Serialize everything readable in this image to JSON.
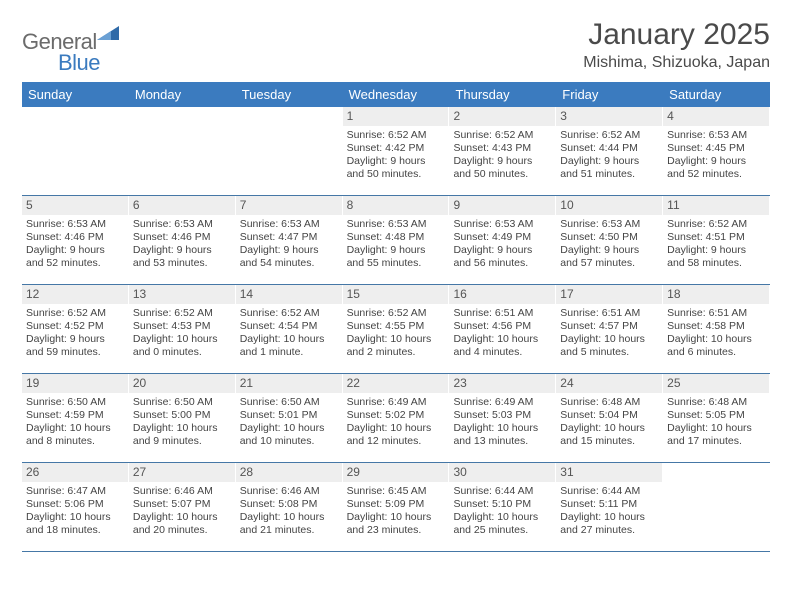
{
  "brand": {
    "general": "General",
    "blue": "Blue"
  },
  "title": "January 2025",
  "location": "Mishima, Shizuoka, Japan",
  "colors": {
    "header_bg": "#3b7bbf",
    "header_text": "#ffffff",
    "daynum_bg": "#eeeeee",
    "rule": "#4577a6",
    "text": "#444444"
  },
  "days_of_week": [
    "Sunday",
    "Monday",
    "Tuesday",
    "Wednesday",
    "Thursday",
    "Friday",
    "Saturday"
  ],
  "weeks": [
    [
      {
        "n": "",
        "sr": "",
        "ss": "",
        "dl": ""
      },
      {
        "n": "",
        "sr": "",
        "ss": "",
        "dl": ""
      },
      {
        "n": "",
        "sr": "",
        "ss": "",
        "dl": ""
      },
      {
        "n": "1",
        "sr": "Sunrise: 6:52 AM",
        "ss": "Sunset: 4:42 PM",
        "dl": "Daylight: 9 hours and 50 minutes."
      },
      {
        "n": "2",
        "sr": "Sunrise: 6:52 AM",
        "ss": "Sunset: 4:43 PM",
        "dl": "Daylight: 9 hours and 50 minutes."
      },
      {
        "n": "3",
        "sr": "Sunrise: 6:52 AM",
        "ss": "Sunset: 4:44 PM",
        "dl": "Daylight: 9 hours and 51 minutes."
      },
      {
        "n": "4",
        "sr": "Sunrise: 6:53 AM",
        "ss": "Sunset: 4:45 PM",
        "dl": "Daylight: 9 hours and 52 minutes."
      }
    ],
    [
      {
        "n": "5",
        "sr": "Sunrise: 6:53 AM",
        "ss": "Sunset: 4:46 PM",
        "dl": "Daylight: 9 hours and 52 minutes."
      },
      {
        "n": "6",
        "sr": "Sunrise: 6:53 AM",
        "ss": "Sunset: 4:46 PM",
        "dl": "Daylight: 9 hours and 53 minutes."
      },
      {
        "n": "7",
        "sr": "Sunrise: 6:53 AM",
        "ss": "Sunset: 4:47 PM",
        "dl": "Daylight: 9 hours and 54 minutes."
      },
      {
        "n": "8",
        "sr": "Sunrise: 6:53 AM",
        "ss": "Sunset: 4:48 PM",
        "dl": "Daylight: 9 hours and 55 minutes."
      },
      {
        "n": "9",
        "sr": "Sunrise: 6:53 AM",
        "ss": "Sunset: 4:49 PM",
        "dl": "Daylight: 9 hours and 56 minutes."
      },
      {
        "n": "10",
        "sr": "Sunrise: 6:53 AM",
        "ss": "Sunset: 4:50 PM",
        "dl": "Daylight: 9 hours and 57 minutes."
      },
      {
        "n": "11",
        "sr": "Sunrise: 6:52 AM",
        "ss": "Sunset: 4:51 PM",
        "dl": "Daylight: 9 hours and 58 minutes."
      }
    ],
    [
      {
        "n": "12",
        "sr": "Sunrise: 6:52 AM",
        "ss": "Sunset: 4:52 PM",
        "dl": "Daylight: 9 hours and 59 minutes."
      },
      {
        "n": "13",
        "sr": "Sunrise: 6:52 AM",
        "ss": "Sunset: 4:53 PM",
        "dl": "Daylight: 10 hours and 0 minutes."
      },
      {
        "n": "14",
        "sr": "Sunrise: 6:52 AM",
        "ss": "Sunset: 4:54 PM",
        "dl": "Daylight: 10 hours and 1 minute."
      },
      {
        "n": "15",
        "sr": "Sunrise: 6:52 AM",
        "ss": "Sunset: 4:55 PM",
        "dl": "Daylight: 10 hours and 2 minutes."
      },
      {
        "n": "16",
        "sr": "Sunrise: 6:51 AM",
        "ss": "Sunset: 4:56 PM",
        "dl": "Daylight: 10 hours and 4 minutes."
      },
      {
        "n": "17",
        "sr": "Sunrise: 6:51 AM",
        "ss": "Sunset: 4:57 PM",
        "dl": "Daylight: 10 hours and 5 minutes."
      },
      {
        "n": "18",
        "sr": "Sunrise: 6:51 AM",
        "ss": "Sunset: 4:58 PM",
        "dl": "Daylight: 10 hours and 6 minutes."
      }
    ],
    [
      {
        "n": "19",
        "sr": "Sunrise: 6:50 AM",
        "ss": "Sunset: 4:59 PM",
        "dl": "Daylight: 10 hours and 8 minutes."
      },
      {
        "n": "20",
        "sr": "Sunrise: 6:50 AM",
        "ss": "Sunset: 5:00 PM",
        "dl": "Daylight: 10 hours and 9 minutes."
      },
      {
        "n": "21",
        "sr": "Sunrise: 6:50 AM",
        "ss": "Sunset: 5:01 PM",
        "dl": "Daylight: 10 hours and 10 minutes."
      },
      {
        "n": "22",
        "sr": "Sunrise: 6:49 AM",
        "ss": "Sunset: 5:02 PM",
        "dl": "Daylight: 10 hours and 12 minutes."
      },
      {
        "n": "23",
        "sr": "Sunrise: 6:49 AM",
        "ss": "Sunset: 5:03 PM",
        "dl": "Daylight: 10 hours and 13 minutes."
      },
      {
        "n": "24",
        "sr": "Sunrise: 6:48 AM",
        "ss": "Sunset: 5:04 PM",
        "dl": "Daylight: 10 hours and 15 minutes."
      },
      {
        "n": "25",
        "sr": "Sunrise: 6:48 AM",
        "ss": "Sunset: 5:05 PM",
        "dl": "Daylight: 10 hours and 17 minutes."
      }
    ],
    [
      {
        "n": "26",
        "sr": "Sunrise: 6:47 AM",
        "ss": "Sunset: 5:06 PM",
        "dl": "Daylight: 10 hours and 18 minutes."
      },
      {
        "n": "27",
        "sr": "Sunrise: 6:46 AM",
        "ss": "Sunset: 5:07 PM",
        "dl": "Daylight: 10 hours and 20 minutes."
      },
      {
        "n": "28",
        "sr": "Sunrise: 6:46 AM",
        "ss": "Sunset: 5:08 PM",
        "dl": "Daylight: 10 hours and 21 minutes."
      },
      {
        "n": "29",
        "sr": "Sunrise: 6:45 AM",
        "ss": "Sunset: 5:09 PM",
        "dl": "Daylight: 10 hours and 23 minutes."
      },
      {
        "n": "30",
        "sr": "Sunrise: 6:44 AM",
        "ss": "Sunset: 5:10 PM",
        "dl": "Daylight: 10 hours and 25 minutes."
      },
      {
        "n": "31",
        "sr": "Sunrise: 6:44 AM",
        "ss": "Sunset: 5:11 PM",
        "dl": "Daylight: 10 hours and 27 minutes."
      },
      {
        "n": "",
        "sr": "",
        "ss": "",
        "dl": ""
      }
    ]
  ]
}
